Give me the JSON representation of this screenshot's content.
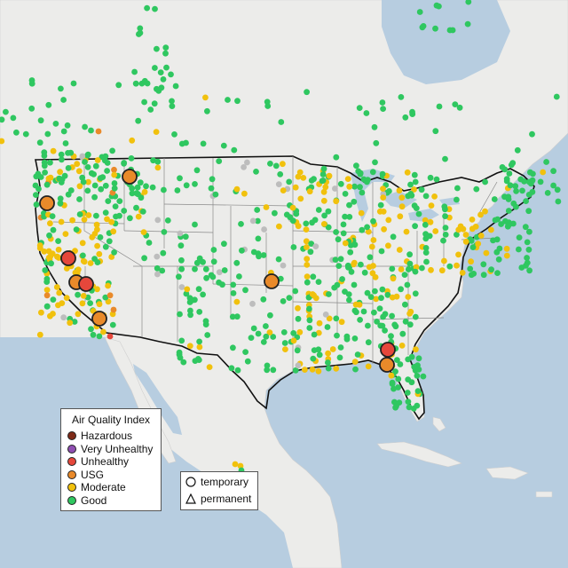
{
  "map": {
    "colors": {
      "ocean": "#b7cde0",
      "land": "#ececea",
      "land_shade": "#e2ddd5",
      "boundary": "#111111",
      "state_lines": "#8a8a8a"
    }
  },
  "legend": {
    "title": "Air Quality Index",
    "items": [
      {
        "label": "Hazardous",
        "color": "#7e2a18"
      },
      {
        "label": "Very Unhealthy",
        "color": "#8f4fb2"
      },
      {
        "label": "Unhealthy",
        "color": "#e5473b"
      },
      {
        "label": "USG",
        "color": "#e98a2a"
      },
      {
        "label": "Moderate",
        "color": "#f1c10d"
      },
      {
        "label": "Good",
        "color": "#2fc760"
      }
    ],
    "type_items": [
      {
        "label": "temporary",
        "shape": "circle"
      },
      {
        "label": "permanent",
        "shape": "triangle"
      }
    ]
  },
  "stations": {
    "large": [
      {
        "category": "USG",
        "color": "#e98a2a"
      },
      {
        "category": "USG",
        "color": "#e98a2a"
      },
      {
        "category": "Unhealthy",
        "color": "#e5473b"
      },
      {
        "category": "USG",
        "color": "#e98a2a"
      },
      {
        "category": "Unhealthy",
        "color": "#e5473b"
      },
      {
        "category": "USG",
        "color": "#e98a2a"
      },
      {
        "category": "USG",
        "color": "#e98a2a"
      },
      {
        "category": "Unhealthy",
        "color": "#e5473b"
      },
      {
        "category": "USG",
        "color": "#e98a2a"
      }
    ]
  }
}
